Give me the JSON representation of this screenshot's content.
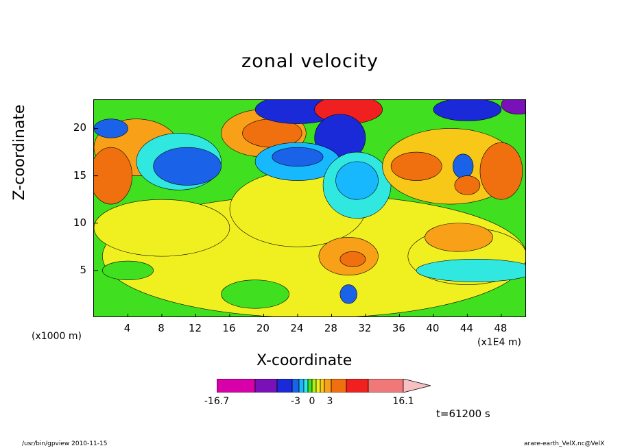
{
  "chart_data": {
    "type": "heatmap",
    "title": "zonal velocity",
    "xlabel": "X-coordinate",
    "ylabel": "Z-coordinate",
    "x_unit_left": "(x1000 m)",
    "x_unit_right": "(x1E4 m)",
    "x_ticks": [
      "4",
      "8",
      "12",
      "16",
      "20",
      "24",
      "28",
      "32",
      "36",
      "40",
      "44",
      "48"
    ],
    "x_tick_values": [
      4,
      8,
      12,
      16,
      20,
      24,
      28,
      32,
      36,
      40,
      44,
      48
    ],
    "y_ticks": [
      "5",
      "10",
      "15",
      "20"
    ],
    "y_tick_values": [
      5,
      10,
      15,
      20
    ],
    "xlim": [
      0,
      51
    ],
    "ylim": [
      0,
      23
    ],
    "colorbar": {
      "min_label": "-16.7",
      "max_label": "16.1",
      "mid_labels": [
        "-3",
        "0",
        "3"
      ],
      "colors": [
        "#d800a8",
        "#7a10b8",
        "#1a2ad8",
        "#1a62e8",
        "#18b8ff",
        "#30e8e0",
        "#40e020",
        "#a8f020",
        "#f0f020",
        "#f8c818",
        "#f8a018",
        "#f07010",
        "#f02020",
        "#f07878",
        "#f8c0c0"
      ]
    },
    "background_level_color": "#40e020",
    "regions": [
      {
        "x": 26,
        "y": 6.5,
        "rx": 25,
        "ry": 6.5,
        "color": "#f0f020"
      },
      {
        "x": 8,
        "y": 9.5,
        "rx": 8,
        "ry": 3,
        "color": "#f0f020"
      },
      {
        "x": 24,
        "y": 11.5,
        "rx": 8,
        "ry": 4,
        "color": "#f0f020"
      },
      {
        "x": 44,
        "y": 6.5,
        "rx": 7,
        "ry": 3,
        "color": "#f0f020"
      },
      {
        "x": 5,
        "y": 18,
        "rx": 5,
        "ry": 3,
        "color": "#f8a018"
      },
      {
        "x": 2,
        "y": 15,
        "rx": 2.5,
        "ry": 3,
        "color": "#f07010"
      },
      {
        "x": 10,
        "y": 16.5,
        "rx": 5,
        "ry": 3,
        "color": "#30e8e0"
      },
      {
        "x": 11,
        "y": 16,
        "rx": 4,
        "ry": 2,
        "color": "#1a62e8"
      },
      {
        "x": 20,
        "y": 19.5,
        "rx": 5,
        "ry": 2.5,
        "color": "#f8a018"
      },
      {
        "x": 21,
        "y": 19.5,
        "rx": 3.5,
        "ry": 1.5,
        "color": "#f07010"
      },
      {
        "x": 24,
        "y": 22,
        "rx": 5,
        "ry": 1.5,
        "color": "#1a2ad8"
      },
      {
        "x": 30,
        "y": 22,
        "rx": 4,
        "ry": 1.5,
        "color": "#f02020"
      },
      {
        "x": 29,
        "y": 19,
        "rx": 3,
        "ry": 2.5,
        "color": "#1a2ad8"
      },
      {
        "x": 24,
        "y": 16.5,
        "rx": 5,
        "ry": 2,
        "color": "#18b8ff"
      },
      {
        "x": 24,
        "y": 17,
        "rx": 3,
        "ry": 1,
        "color": "#1a62e8"
      },
      {
        "x": 31,
        "y": 14,
        "rx": 4,
        "ry": 3.5,
        "color": "#30e8e0"
      },
      {
        "x": 31,
        "y": 14.5,
        "rx": 2.5,
        "ry": 2,
        "color": "#18b8ff"
      },
      {
        "x": 42,
        "y": 16,
        "rx": 8,
        "ry": 4,
        "color": "#f8c818"
      },
      {
        "x": 38,
        "y": 16,
        "rx": 3,
        "ry": 1.5,
        "color": "#f07010"
      },
      {
        "x": 43.5,
        "y": 16,
        "rx": 1.2,
        "ry": 1.3,
        "color": "#1a62e8"
      },
      {
        "x": 48,
        "y": 15.5,
        "rx": 2.5,
        "ry": 3,
        "color": "#f07010"
      },
      {
        "x": 44,
        "y": 14,
        "rx": 1.5,
        "ry": 1,
        "color": "#f07010"
      },
      {
        "x": 50,
        "y": 22.5,
        "rx": 2,
        "ry": 1,
        "color": "#7a10b8"
      },
      {
        "x": 44,
        "y": 22,
        "rx": 4,
        "ry": 1.2,
        "color": "#1a2ad8"
      },
      {
        "x": 2,
        "y": 20,
        "rx": 2,
        "ry": 1,
        "color": "#1a62e8"
      },
      {
        "x": 43,
        "y": 8.5,
        "rx": 4,
        "ry": 1.5,
        "color": "#f8a018"
      },
      {
        "x": 30,
        "y": 6.5,
        "rx": 3.5,
        "ry": 2,
        "color": "#f8a018"
      },
      {
        "x": 30.5,
        "y": 6.2,
        "rx": 1.5,
        "ry": 0.8,
        "color": "#f07010"
      },
      {
        "x": 45,
        "y": 5,
        "rx": 7,
        "ry": 1.2,
        "color": "#30e8e0"
      },
      {
        "x": 4,
        "y": 5,
        "rx": 3,
        "ry": 1,
        "color": "#40e020"
      },
      {
        "x": 19,
        "y": 2.5,
        "rx": 4,
        "ry": 1.5,
        "color": "#40e020"
      },
      {
        "x": 30,
        "y": 2.5,
        "rx": 1,
        "ry": 1,
        "color": "#1a62e8"
      }
    ]
  },
  "timestamp": "t=61200 s",
  "footer_left": "/usr/bin/gpview   2010-11-15",
  "footer_right": "arare-earth_VelX.nc@VelX"
}
